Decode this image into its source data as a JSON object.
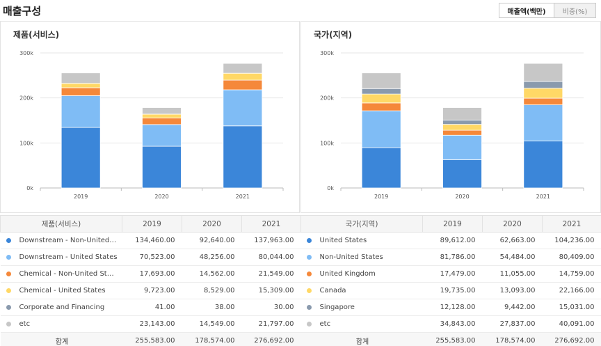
{
  "section_title": "매출구성",
  "toggle": {
    "amount_label": "매출액(백만)",
    "ratio_label": "비중(%)"
  },
  "colors": {
    "s1": "#3b86d9",
    "s2": "#7fbcf5",
    "s3": "#f5883a",
    "s4": "#ffd866",
    "s5": "#8a9aad",
    "s6": "#c7c7c7"
  },
  "left": {
    "title": "제품(서비스)",
    "header": [
      "제품(서비스)",
      "2019",
      "2020",
      "2021"
    ],
    "rows": [
      {
        "label": "Downstream - Non-United ...",
        "values": [
          "134,460.00",
          "92,640.00",
          "137,963.00"
        ]
      },
      {
        "label": "Downstream - United States",
        "values": [
          "70,523.00",
          "48,256.00",
          "80,044.00"
        ]
      },
      {
        "label": "Chemical - Non-United States",
        "values": [
          "17,693.00",
          "14,562.00",
          "21,549.00"
        ]
      },
      {
        "label": "Chemical - United States",
        "values": [
          "9,723.00",
          "8,529.00",
          "15,309.00"
        ]
      },
      {
        "label": "Corporate and Financing",
        "values": [
          "41.00",
          "38.00",
          "30.00"
        ]
      },
      {
        "label": "etc",
        "values": [
          "23,143.00",
          "14,549.00",
          "21,797.00"
        ]
      }
    ],
    "total": {
      "label": "합계",
      "values": [
        "255,583.00",
        "178,574.00",
        "276,692.00"
      ]
    }
  },
  "right": {
    "title": "국가(지역)",
    "header": [
      "국가(지역)",
      "2019",
      "2020",
      "2021"
    ],
    "rows": [
      {
        "label": "United States",
        "values": [
          "89,612.00",
          "62,663.00",
          "104,236.00"
        ]
      },
      {
        "label": "Non-United States",
        "values": [
          "81,786.00",
          "54,484.00",
          "80,409.00"
        ]
      },
      {
        "label": "United Kingdom",
        "values": [
          "17,479.00",
          "11,055.00",
          "14,759.00"
        ]
      },
      {
        "label": "Canada",
        "values": [
          "19,735.00",
          "13,093.00",
          "22,166.00"
        ]
      },
      {
        "label": "Singapore",
        "values": [
          "12,128.00",
          "9,442.00",
          "15,031.00"
        ]
      },
      {
        "label": "etc",
        "values": [
          "34,843.00",
          "27,837.00",
          "40,091.00"
        ]
      }
    ],
    "total": {
      "label": "합계",
      "values": [
        "255,583.00",
        "178,574.00",
        "276,692.00"
      ]
    }
  },
  "chart_data": [
    {
      "type": "bar",
      "stacked": true,
      "title": "제품(서비스)",
      "categories": [
        "2019",
        "2020",
        "2021"
      ],
      "ylim": [
        0,
        300000
      ],
      "yticks": [
        "0k",
        "100k",
        "200k",
        "300k"
      ],
      "series": [
        {
          "name": "Downstream - Non-United ...",
          "values": [
            134460,
            92640,
            137963
          ]
        },
        {
          "name": "Downstream - United States",
          "values": [
            70523,
            48256,
            80044
          ]
        },
        {
          "name": "Chemical - Non-United States",
          "values": [
            17693,
            14562,
            21549
          ]
        },
        {
          "name": "Chemical - United States",
          "values": [
            9723,
            8529,
            15309
          ]
        },
        {
          "name": "Corporate and Financing",
          "values": [
            41,
            38,
            30
          ]
        },
        {
          "name": "etc",
          "values": [
            23143,
            14549,
            21797
          ]
        }
      ]
    },
    {
      "type": "bar",
      "stacked": true,
      "title": "국가(지역)",
      "categories": [
        "2019",
        "2020",
        "2021"
      ],
      "ylim": [
        0,
        300000
      ],
      "yticks": [
        "0k",
        "100k",
        "200k",
        "300k"
      ],
      "series": [
        {
          "name": "United States",
          "values": [
            89612,
            62663,
            104236
          ]
        },
        {
          "name": "Non-United States",
          "values": [
            81786,
            54484,
            80409
          ]
        },
        {
          "name": "United Kingdom",
          "values": [
            17479,
            11055,
            14759
          ]
        },
        {
          "name": "Canada",
          "values": [
            19735,
            13093,
            22166
          ]
        },
        {
          "name": "Singapore",
          "values": [
            12128,
            9442,
            15031
          ]
        },
        {
          "name": "etc",
          "values": [
            34843,
            27837,
            40091
          ]
        }
      ]
    }
  ]
}
